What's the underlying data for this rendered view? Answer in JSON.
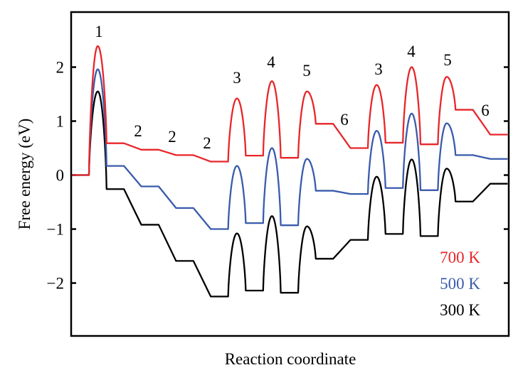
{
  "chart_data": {
    "type": "line",
    "title": "",
    "xlabel": "Reaction coordinate",
    "ylabel": "Free energy (eV)",
    "ylim": [
      -2.98,
      3.02
    ],
    "yticks": [
      2,
      1,
      0,
      -1,
      -2
    ],
    "ytick_labels": [
      "2",
      "1",
      "0",
      "−1",
      "−2"
    ],
    "grid": false,
    "legend_placement": "bottom-right",
    "step_labels": [
      "1",
      "2",
      "2",
      "2",
      "3",
      "4",
      "5",
      "6",
      "3",
      "4",
      "5",
      "6"
    ],
    "sequence_kinds": [
      "state",
      "ts",
      "state",
      "state",
      "state",
      "state",
      "ts",
      "state",
      "ts",
      "state",
      "ts",
      "state",
      "state",
      "ts",
      "state",
      "ts",
      "state",
      "ts",
      "state",
      "state"
    ],
    "series": [
      {
        "name": "700 K",
        "color": "#e8262a",
        "values": [
          0,
          2.39,
          0.59,
          0.47,
          0.37,
          0.25,
          1.42,
          0.36,
          1.74,
          0.32,
          1.55,
          0.95,
          0.5,
          1.67,
          0.6,
          2.0,
          0.57,
          1.82,
          1.21,
          0.75
        ]
      },
      {
        "name": "500 K",
        "color": "#3a5bab",
        "values": [
          0,
          1.96,
          0.17,
          -0.21,
          -0.61,
          -1.0,
          0.17,
          -0.89,
          0.5,
          -0.93,
          0.3,
          -0.29,
          -0.35,
          0.82,
          -0.24,
          1.14,
          -0.28,
          0.96,
          0.37,
          0.3
        ]
      },
      {
        "name": "300 K",
        "color": "#000000",
        "values": [
          0,
          1.55,
          -0.26,
          -0.92,
          -1.59,
          -2.25,
          -1.08,
          -2.14,
          -0.76,
          -2.18,
          -0.95,
          -1.55,
          -1.2,
          -0.03,
          -1.09,
          0.29,
          -1.13,
          0.12,
          -0.49,
          -0.16
        ]
      }
    ]
  }
}
